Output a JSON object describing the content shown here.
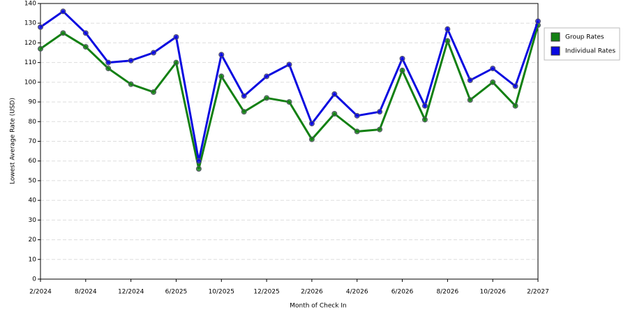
{
  "chart_data": {
    "type": "line",
    "x_label": "Month of Check In",
    "y_label": "Lowest Average Rate (USD)",
    "categories": [
      "2/2024",
      null,
      "8/2024",
      null,
      "12/2024",
      null,
      "6/2025",
      null,
      "10/2025",
      null,
      "12/2025",
      null,
      "2/2026",
      null,
      "4/2026",
      null,
      "6/2026",
      null,
      "8/2026",
      null,
      "10/2026",
      null,
      "2/2027"
    ],
    "series": [
      {
        "name": "Group Rates",
        "color": "#138013",
        "values": [
          117,
          125,
          118,
          107,
          99,
          95,
          110,
          56,
          103,
          85,
          92,
          90,
          71,
          84,
          75,
          76,
          106,
          81,
          121,
          91,
          100,
          88,
          129
        ]
      },
      {
        "name": "Individual Rates",
        "color": "#0a0ae0",
        "values": [
          128,
          136,
          125,
          110,
          111,
          115,
          123,
          60,
          114,
          93,
          103,
          109,
          79,
          94,
          83,
          85,
          112,
          88,
          127,
          101,
          107,
          98,
          131
        ]
      }
    ],
    "ylim": [
      0,
      140
    ],
    "yticks": [
      0,
      10,
      20,
      30,
      40,
      50,
      60,
      70,
      80,
      90,
      100,
      110,
      120,
      130,
      140
    ],
    "grid": true,
    "legend": "right"
  }
}
